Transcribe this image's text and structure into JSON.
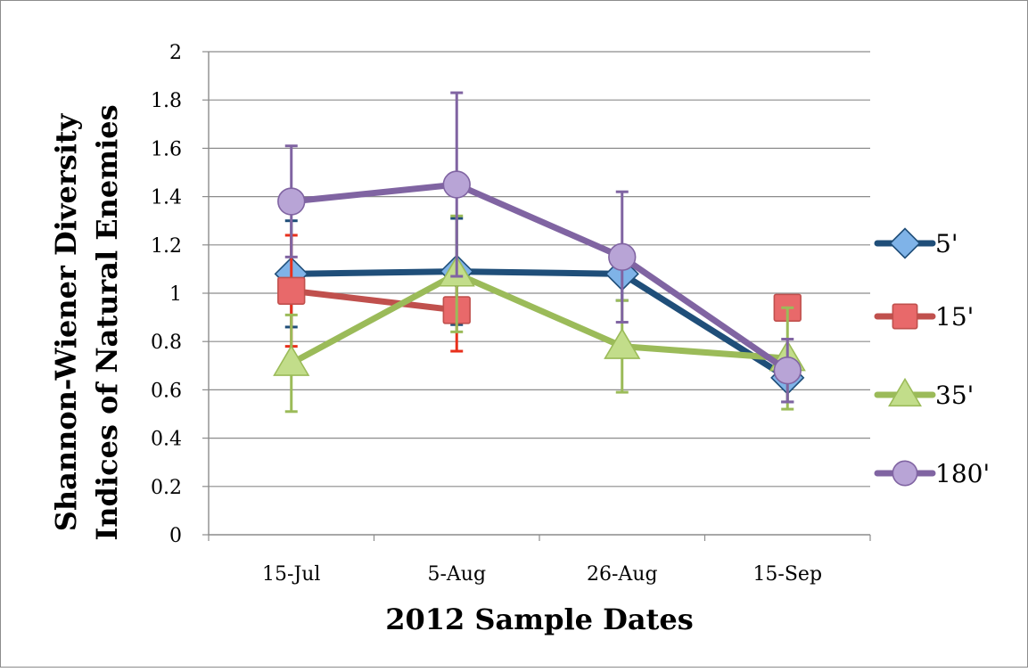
{
  "chart_data": {
    "type": "line",
    "title": "",
    "xlabel": "2012 Sample Dates",
    "ylabel_line1": "Shannon-Wiener Diversity",
    "ylabel_line2": "Indices of Natural Enemies",
    "categories": [
      "15-Jul",
      "5-Aug",
      "26-Aug",
      "15-Sep"
    ],
    "ylim": [
      0,
      2
    ],
    "yticks": [
      "0",
      "0.2",
      "0.4",
      "0.6",
      "0.8",
      "1",
      "1.2",
      "1.4",
      "1.6",
      "1.8",
      "2"
    ],
    "grid": true,
    "legend_position": "right",
    "series": [
      {
        "name": "5'",
        "color": "#1f4e79",
        "marker": "diamond",
        "marker_color": "#7fb3e8",
        "error_color": "#1f4e79",
        "values": [
          1.08,
          1.09,
          1.08,
          0.65
        ],
        "errors": [
          0.22,
          0.22,
          0.11,
          0.1
        ]
      },
      {
        "name": "15'",
        "color": "#c0504d",
        "marker": "square",
        "marker_color": "#e8696a",
        "error_color": "#e8301c",
        "values": [
          1.01,
          0.93,
          null,
          0.94
        ],
        "errors": [
          0.23,
          0.17,
          null,
          null
        ]
      },
      {
        "name": "35'",
        "color": "#9bbb59",
        "marker": "triangle",
        "marker_color": "#c2dd8a",
        "error_color": "#9bbb59",
        "values": [
          0.71,
          1.08,
          0.78,
          0.73
        ],
        "errors": [
          0.2,
          0.24,
          0.19,
          0.21
        ]
      },
      {
        "name": "180'",
        "color": "#8064a2",
        "marker": "circle",
        "marker_color": "#b8a4d6",
        "error_color": "#8064a2",
        "values": [
          1.38,
          1.45,
          1.15,
          0.68
        ],
        "errors": [
          0.23,
          0.38,
          0.27,
          0.13
        ]
      }
    ]
  }
}
